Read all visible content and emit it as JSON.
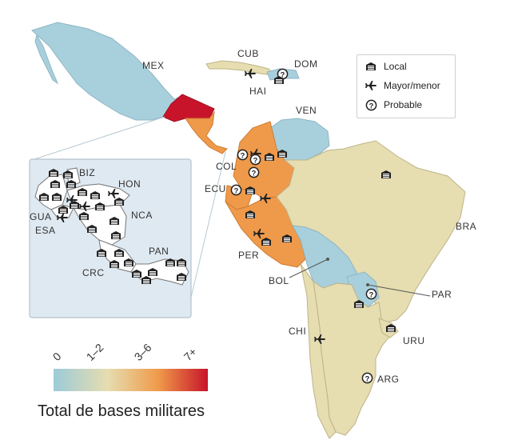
{
  "legend": {
    "items": [
      {
        "icon": "building-icon",
        "label": "Local"
      },
      {
        "icon": "airplane-icon",
        "label": "Mayor/menor"
      },
      {
        "icon": "question-circle-icon",
        "label": "Probable"
      }
    ]
  },
  "scale": {
    "title": "Total de bases militares",
    "ticks": [
      "0",
      "1–2",
      "3–6",
      "7+"
    ],
    "colors": {
      "low": "#9ccbd9",
      "mid1": "#e6ddb0",
      "mid2": "#ef9a4a",
      "high": "#c8142a"
    }
  },
  "countries": {
    "mex": "MEX",
    "cub": "CUB",
    "dom": "DOM",
    "hai": "HAI",
    "ven": "VEN",
    "col": "COL",
    "ecu": "ECU",
    "per": "PER",
    "bra": "BRA",
    "bol": "BOL",
    "par": "PAR",
    "chi": "CHI",
    "uru": "URU",
    "arg": "ARG",
    "biz": "BIZ",
    "hon": "HON",
    "gua": "GUA",
    "esa": "ESA",
    "nca": "NCA",
    "crc": "CRC",
    "pan": "PAN"
  }
}
